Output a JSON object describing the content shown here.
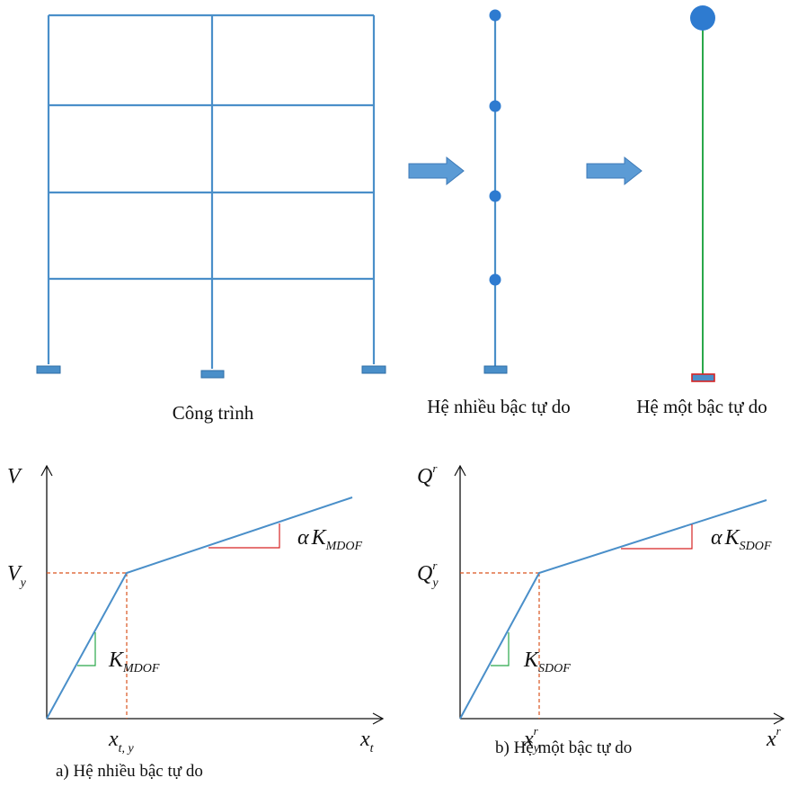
{
  "colors": {
    "frame": "#4a8fc9",
    "dashed": "#d9541f",
    "triangle_red": "#d62424",
    "triangle_green": "#2aa84a",
    "sdof_stem": "#2aa84a",
    "arrow_fill": "#5b9bd5",
    "arrow_stroke": "#3d7ab8"
  },
  "top": {
    "frame_caption": "Công trình",
    "mdof_caption": "Hệ nhiều bậc tự do",
    "sdof_caption": "Hệ một bậc tự do",
    "arrow_icon": "right-arrow-icon"
  },
  "graph_a": {
    "y_axis": {
      "main": "V"
    },
    "yield_force": {
      "main": "V",
      "sub": "y"
    },
    "yield_disp": {
      "main": "x",
      "sub": "t, y"
    },
    "x_axis": {
      "main": "x",
      "sub": "t"
    },
    "initial_stiffness": {
      "main": "K",
      "sub": "MDOF"
    },
    "post_stiffness": {
      "prefix": "α",
      "main": "K",
      "sub": "MDOF"
    },
    "caption": "a) Hệ nhiều bậc tự do"
  },
  "graph_b": {
    "y_axis": {
      "main": "Q",
      "sup": "r"
    },
    "yield_force": {
      "main": "Q",
      "sup": "r",
      "sub": "y"
    },
    "yield_disp": {
      "main": "x",
      "sup": "r",
      "sub": "y"
    },
    "x_axis": {
      "main": "x",
      "sup": "r"
    },
    "initial_stiffness": {
      "main": "K",
      "sub": "SDOF"
    },
    "post_stiffness": {
      "prefix": "α",
      "main": "K",
      "sub": "SDOF"
    },
    "caption": "b) Hệ một bậc tự do"
  }
}
